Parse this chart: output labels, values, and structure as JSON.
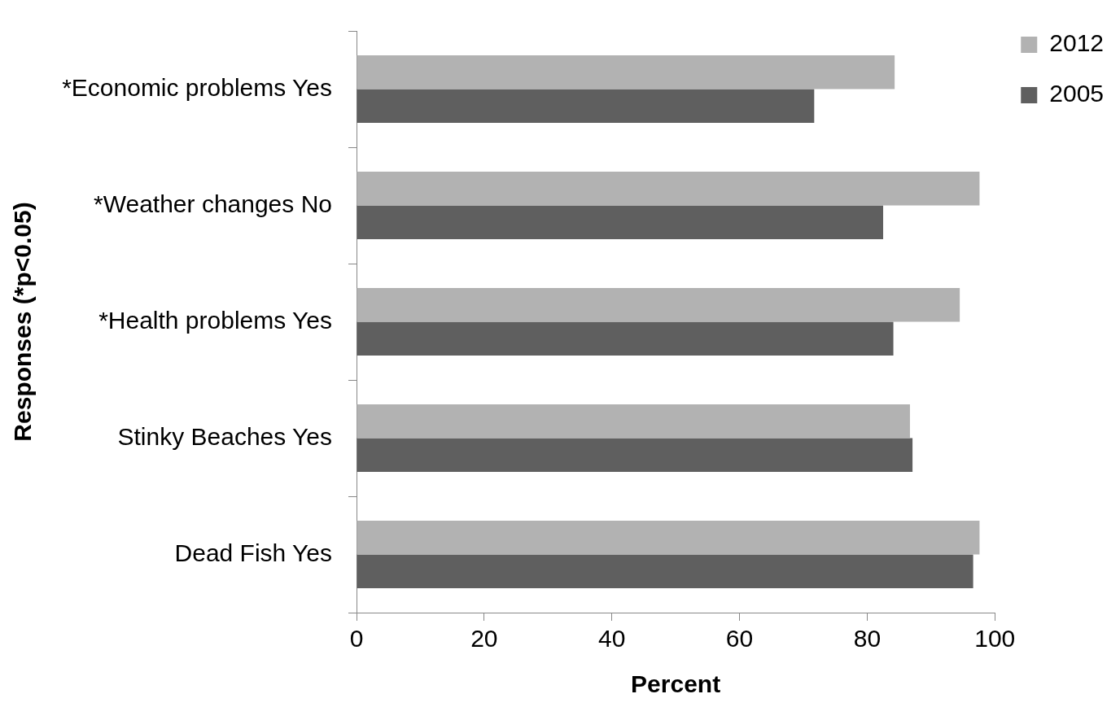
{
  "chart_data": {
    "type": "bar",
    "orientation": "horizontal",
    "xlabel": "Percent",
    "ylabel": "Responses (*p<0.05)",
    "categories": [
      "*Economic problems Yes",
      "*Weather changes No",
      "*Health problems Yes",
      "Stinky Beaches Yes",
      "Dead Fish Yes"
    ],
    "series": [
      {
        "name": "2012",
        "color": "#b2b2b2",
        "values": [
          84.3,
          97.6,
          94.5,
          86.7,
          97.6
        ]
      },
      {
        "name": "2005",
        "color": "#5f5f5f",
        "values": [
          71.7,
          82.5,
          84.1,
          87.1,
          96.6
        ]
      }
    ],
    "xlim": [
      0,
      100
    ],
    "xticks": [
      0,
      20,
      40,
      60,
      80,
      100
    ],
    "grid": false,
    "legend": "right"
  }
}
